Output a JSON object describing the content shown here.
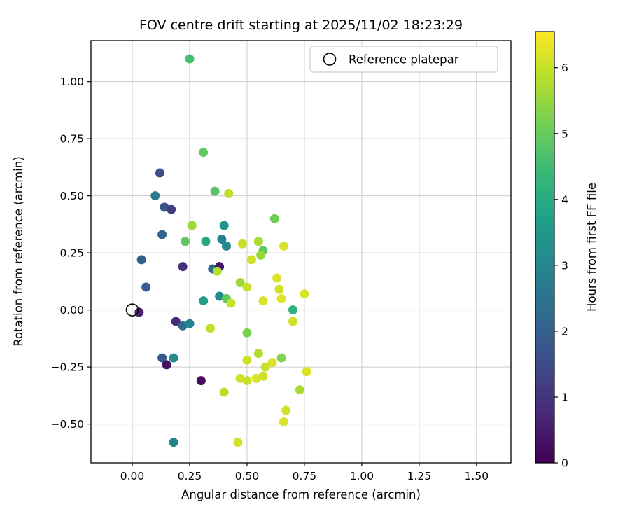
{
  "chart_data": {
    "type": "scatter",
    "title": "FOV centre drift starting at 2025/11/02 18:23:29",
    "xlabel": "Angular distance from reference (arcmin)",
    "ylabel": "Rotation from reference (arcmin)",
    "xlim": [
      -0.18,
      1.65
    ],
    "ylim": [
      -0.67,
      1.18
    ],
    "xticks": [
      0.0,
      0.25,
      0.5,
      0.75,
      1.0,
      1.25,
      1.5
    ],
    "xtick_labels": [
      "0.00",
      "0.25",
      "0.50",
      "0.75",
      "1.00",
      "1.25",
      "1.50"
    ],
    "yticks": [
      -0.5,
      -0.25,
      0.0,
      0.25,
      0.5,
      0.75,
      1.0
    ],
    "ytick_labels": [
      "−0.50",
      "−0.25",
      "0.00",
      "0.25",
      "0.50",
      "0.75",
      "1.00"
    ],
    "grid": true,
    "grid_color": "#cccccc",
    "legend": {
      "label": "Reference platepar",
      "marker": "open-circle",
      "position": "upper right"
    },
    "reference_point": {
      "x": 0.0,
      "y": 0.0
    },
    "colorbar": {
      "label": "Hours from first FF file",
      "colormap": "viridis",
      "vmin": 0,
      "vmax": 6.55,
      "ticks": [
        0,
        1,
        2,
        3,
        4,
        5,
        6
      ],
      "tick_labels": [
        "0",
        "1",
        "2",
        "3",
        "4",
        "5",
        "6"
      ],
      "stops": [
        "#440154",
        "#482878",
        "#3e4989",
        "#31688e",
        "#26828e",
        "#1f9e89",
        "#35b779",
        "#6ece58",
        "#b5de2b",
        "#fde725"
      ]
    },
    "points_format": [
      "x_arcmin",
      "y_arcmin",
      "hours_from_first_FF_file"
    ],
    "points": [
      [
        0.25,
        1.1,
        4.6
      ],
      [
        0.31,
        0.69,
        4.9
      ],
      [
        0.12,
        0.6,
        1.6
      ],
      [
        0.1,
        0.5,
        2.6
      ],
      [
        0.36,
        0.52,
        4.8
      ],
      [
        0.42,
        0.51,
        5.9
      ],
      [
        0.14,
        0.45,
        1.7
      ],
      [
        0.17,
        0.44,
        1.2
      ],
      [
        0.13,
        0.33,
        2.1
      ],
      [
        0.26,
        0.37,
        5.6
      ],
      [
        0.4,
        0.37,
        3.4
      ],
      [
        0.62,
        0.4,
        5.1
      ],
      [
        0.23,
        0.3,
        4.9
      ],
      [
        0.32,
        0.3,
        3.9
      ],
      [
        0.39,
        0.31,
        2.9
      ],
      [
        0.41,
        0.28,
        3.1
      ],
      [
        0.48,
        0.29,
        6.0
      ],
      [
        0.55,
        0.3,
        5.7
      ],
      [
        0.57,
        0.26,
        4.9
      ],
      [
        0.66,
        0.28,
        6.2
      ],
      [
        0.04,
        0.22,
        2.0
      ],
      [
        0.22,
        0.19,
        0.9
      ],
      [
        0.35,
        0.18,
        2.2
      ],
      [
        0.38,
        0.19,
        0.4
      ],
      [
        0.37,
        0.17,
        5.8
      ],
      [
        0.52,
        0.22,
        6.1
      ],
      [
        0.56,
        0.24,
        5.5
      ],
      [
        0.06,
        0.1,
        2.0
      ],
      [
        0.47,
        0.12,
        5.6
      ],
      [
        0.5,
        0.1,
        6.0
      ],
      [
        0.63,
        0.14,
        6.2
      ],
      [
        0.64,
        0.09,
        6.1
      ],
      [
        0.31,
        0.04,
        3.6
      ],
      [
        0.38,
        0.06,
        3.2
      ],
      [
        0.41,
        0.05,
        4.9
      ],
      [
        0.43,
        0.03,
        6.0
      ],
      [
        0.57,
        0.04,
        6.2
      ],
      [
        0.65,
        0.05,
        6.3
      ],
      [
        0.7,
        0.0,
        4.2
      ],
      [
        0.75,
        0.07,
        6.2
      ],
      [
        0.03,
        -0.01,
        0.6
      ],
      [
        0.19,
        -0.05,
        0.8
      ],
      [
        0.22,
        -0.07,
        2.3
      ],
      [
        0.25,
        -0.06,
        2.9
      ],
      [
        0.34,
        -0.08,
        5.9
      ],
      [
        0.5,
        -0.1,
        5.2
      ],
      [
        0.7,
        -0.05,
        6.1
      ],
      [
        0.13,
        -0.21,
        1.8
      ],
      [
        0.18,
        -0.21,
        3.2
      ],
      [
        0.15,
        -0.24,
        0.3
      ],
      [
        0.5,
        -0.22,
        6.1
      ],
      [
        0.55,
        -0.19,
        5.8
      ],
      [
        0.58,
        -0.25,
        6.0
      ],
      [
        0.61,
        -0.23,
        6.2
      ],
      [
        0.65,
        -0.21,
        5.3
      ],
      [
        0.3,
        -0.31,
        0.2
      ],
      [
        0.4,
        -0.36,
        5.9
      ],
      [
        0.47,
        -0.3,
        6.1
      ],
      [
        0.5,
        -0.31,
        6.0
      ],
      [
        0.54,
        -0.3,
        6.2
      ],
      [
        0.57,
        -0.29,
        6.1
      ],
      [
        0.76,
        -0.27,
        6.2
      ],
      [
        0.73,
        -0.35,
        5.7
      ],
      [
        0.67,
        -0.44,
        6.1
      ],
      [
        0.66,
        -0.49,
        6.2
      ],
      [
        0.18,
        -0.58,
        3.0
      ],
      [
        0.46,
        -0.58,
        6.1
      ]
    ]
  }
}
